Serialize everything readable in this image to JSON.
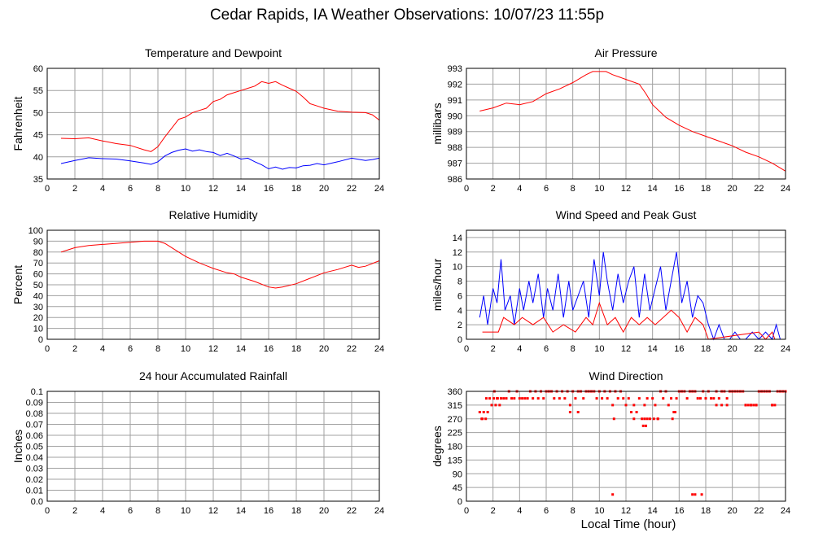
{
  "page": {
    "title": "Cedar Rapids, IA Weather Observations: 10/07/23 11:55p",
    "x_axis_label": "Local Time (hour)"
  },
  "colors": {
    "primary_series": "#ff0000",
    "secondary_series": "#0000ff",
    "grid": "#a0a0a0",
    "frame": "#000000"
  },
  "chart_data": [
    {
      "id": "temp",
      "type": "line",
      "title": "Temperature and Dewpoint",
      "ylabel": "Fahrenheit",
      "xlim": [
        0,
        24
      ],
      "ylim": [
        35,
        60
      ],
      "xticks": [
        0,
        2,
        4,
        6,
        8,
        10,
        12,
        14,
        16,
        18,
        20,
        22,
        24
      ],
      "yticks": [
        35,
        40,
        45,
        50,
        55,
        60
      ],
      "grid": true,
      "series": [
        {
          "color": "#ff0000",
          "x": [
            1,
            2,
            3,
            4,
            5,
            6,
            7,
            7.5,
            8,
            8.5,
            9,
            9.5,
            10,
            10.5,
            11,
            11.5,
            12,
            12.5,
            13,
            13.5,
            14,
            14.5,
            15,
            15.5,
            16,
            16.5,
            17,
            17.5,
            18,
            18.5,
            19,
            19.5,
            20,
            21,
            22,
            23,
            23.5,
            24
          ],
          "y": [
            44.2,
            44.1,
            44.3,
            43.6,
            43,
            42.6,
            41.6,
            41.2,
            42.3,
            44.5,
            46.5,
            48.5,
            49,
            50,
            50.5,
            51,
            52.5,
            53,
            54,
            54.5,
            55,
            55.5,
            56,
            57,
            56.6,
            57,
            56.2,
            55.5,
            54.8,
            53.5,
            52,
            51.5,
            51,
            50.3,
            50.1,
            50,
            49.5,
            48.3
          ]
        },
        {
          "color": "#0000ff",
          "x": [
            1,
            2,
            3,
            4,
            5,
            6,
            7,
            7.5,
            8,
            8.5,
            9,
            9.5,
            10,
            10.5,
            11,
            11.5,
            12,
            12.5,
            13,
            13.5,
            14,
            14.5,
            15,
            15.5,
            16,
            16.5,
            17,
            17.5,
            18,
            18.5,
            19,
            19.5,
            20,
            21,
            22,
            23,
            23.5,
            24
          ],
          "y": [
            38.5,
            39.2,
            39.8,
            39.6,
            39.5,
            39.1,
            38.6,
            38.3,
            38.9,
            40.2,
            41,
            41.5,
            41.8,
            41.3,
            41.6,
            41.2,
            41,
            40.3,
            40.8,
            40.2,
            39.5,
            39.7,
            38.9,
            38.2,
            37.3,
            37.7,
            37.2,
            37.6,
            37.5,
            38,
            38.1,
            38.5,
            38.2,
            38.9,
            39.7,
            39.2,
            39.4,
            39.7
          ]
        }
      ]
    },
    {
      "id": "pressure",
      "type": "line",
      "title": "Air Pressure",
      "ylabel": "millibars",
      "xlim": [
        0,
        24
      ],
      "ylim": [
        986,
        993
      ],
      "xticks": [
        0,
        2,
        4,
        6,
        8,
        10,
        12,
        14,
        16,
        18,
        20,
        22,
        24
      ],
      "yticks": [
        986,
        987,
        988,
        989,
        990,
        991,
        992,
        993
      ],
      "grid": true,
      "series": [
        {
          "color": "#ff0000",
          "x": [
            1,
            2,
            3,
            4,
            5,
            6,
            7,
            8,
            9,
            9.5,
            10,
            10.5,
            11,
            12,
            13,
            13.5,
            14,
            15,
            16,
            17,
            18,
            19,
            20,
            21,
            22,
            23,
            24
          ],
          "y": [
            990.3,
            990.5,
            990.8,
            990.7,
            990.9,
            991.4,
            991.7,
            992.1,
            992.6,
            992.8,
            992.8,
            992.8,
            992.6,
            992.3,
            992,
            991.4,
            990.7,
            989.9,
            989.4,
            989,
            988.7,
            988.4,
            988.1,
            987.7,
            987.4,
            987,
            986.5
          ]
        }
      ]
    },
    {
      "id": "rh",
      "type": "line",
      "title": "Relative Humidity",
      "ylabel": "Percent",
      "xlim": [
        0,
        24
      ],
      "ylim": [
        0,
        100
      ],
      "xticks": [
        0,
        2,
        4,
        6,
        8,
        10,
        12,
        14,
        16,
        18,
        20,
        22,
        24
      ],
      "yticks": [
        0,
        10,
        20,
        30,
        40,
        50,
        60,
        70,
        80,
        90,
        100
      ],
      "grid": true,
      "series": [
        {
          "color": "#ff0000",
          "x": [
            1,
            1.5,
            2,
            3,
            4,
            5,
            6,
            7,
            8,
            8.5,
            9,
            10,
            11,
            12,
            13,
            13.5,
            14,
            15,
            16,
            16.5,
            17,
            18,
            19,
            20,
            21,
            22,
            22.5,
            23,
            24
          ],
          "y": [
            80,
            82,
            84,
            86,
            87,
            88,
            89,
            90,
            90,
            88,
            84,
            76,
            70,
            65,
            61,
            60,
            57,
            53,
            48,
            47,
            48,
            51,
            56,
            61,
            64,
            68,
            66,
            67,
            72
          ]
        }
      ]
    },
    {
      "id": "wind",
      "type": "line",
      "title": "Wind Speed and Peak Gust",
      "ylabel": "miles/hour",
      "xlim": [
        0,
        24
      ],
      "ylim": [
        0,
        15
      ],
      "xticks": [
        0,
        2,
        4,
        6,
        8,
        10,
        12,
        14,
        16,
        18,
        20,
        22,
        24
      ],
      "yticks": [
        0,
        2,
        4,
        6,
        8,
        10,
        12,
        14
      ],
      "grid": true,
      "series": [
        {
          "color": "#0000ff",
          "x": [
            1,
            1.3,
            1.6,
            2,
            2.3,
            2.6,
            2.9,
            3.3,
            3.6,
            4,
            4.3,
            4.7,
            5,
            5.4,
            5.8,
            6.1,
            6.5,
            6.9,
            7.3,
            7.7,
            8,
            8.4,
            8.8,
            9.2,
            9.6,
            10,
            10.3,
            10.6,
            11,
            11.4,
            11.8,
            12.2,
            12.6,
            13,
            13.4,
            13.8,
            14.2,
            14.6,
            15,
            15.4,
            15.8,
            16.2,
            16.6,
            17,
            17.4,
            17.8,
            18.2,
            18.6,
            19,
            19.4,
            19.8,
            20.2,
            20.6,
            21,
            21.5,
            22,
            22.5,
            23,
            23.3,
            23.6
          ],
          "y": [
            3,
            6,
            2,
            7,
            5,
            11,
            4,
            6,
            2,
            7,
            4,
            8,
            5,
            9,
            3,
            7,
            4,
            9,
            3,
            8,
            4,
            6,
            8,
            3,
            11,
            6,
            12,
            8,
            4,
            9,
            5,
            8,
            10,
            3,
            9,
            4,
            7,
            10,
            4,
            8,
            12,
            5,
            8,
            3,
            6,
            5,
            2,
            0,
            2,
            0,
            0,
            1,
            0,
            0,
            1,
            0,
            1,
            0,
            2,
            0
          ]
        },
        {
          "color": "#ff0000",
          "x": [
            1.2,
            2.4,
            2.8,
            3.6,
            4.2,
            5,
            5.8,
            6.5,
            7.3,
            8.2,
            9,
            9.5,
            10,
            10.6,
            11.2,
            11.8,
            12.4,
            13,
            13.6,
            14.2,
            14.8,
            15.4,
            16,
            16.6,
            17.2,
            17.8,
            18.2,
            22,
            22.5,
            23,
            23.2,
            23.5
          ],
          "y": [
            1,
            1,
            3,
            2,
            3,
            2,
            3,
            1,
            2,
            1,
            3,
            2,
            5,
            2,
            3,
            1,
            3,
            2,
            3,
            2,
            3,
            4,
            3,
            1,
            3,
            2,
            0,
            1,
            0,
            1,
            0,
            0
          ]
        }
      ]
    },
    {
      "id": "rain",
      "type": "line",
      "title": "24 hour Accumulated Rainfall",
      "ylabel": "Inches",
      "xlim": [
        0,
        24
      ],
      "ylim": [
        0,
        0.1
      ],
      "xticks": [
        0,
        2,
        4,
        6,
        8,
        10,
        12,
        14,
        16,
        18,
        20,
        22,
        24
      ],
      "yticks": [
        0.0,
        0.01,
        0.02,
        0.03,
        0.04,
        0.05,
        0.06,
        0.07,
        0.08,
        0.09,
        0.1
      ],
      "ytick_labels": [
        "0.0",
        "0.01",
        "0.02",
        "0.03",
        "0.04",
        "0.05",
        "0.06",
        "0.07",
        "0.08",
        "0.09",
        "0.1"
      ],
      "grid": true,
      "series": [
        {
          "color": "#ff0000",
          "x": [
            1,
            24
          ],
          "y": [
            0,
            0
          ]
        }
      ]
    },
    {
      "id": "dir",
      "type": "scatter",
      "title": "Wind Direction",
      "ylabel": "degrees",
      "xlim": [
        0,
        24
      ],
      "ylim": [
        0,
        360
      ],
      "xticks": [
        0,
        2,
        4,
        6,
        8,
        10,
        12,
        14,
        16,
        18,
        20,
        22,
        24
      ],
      "yticks": [
        0,
        45,
        90,
        135,
        180,
        225,
        270,
        315,
        360
      ],
      "grid": true,
      "series": [
        {
          "color": "#ff0000",
          "x": [
            1.0,
            1.15,
            1.3,
            1.45,
            1.6,
            1.2,
            1.5,
            1.75,
            1.9,
            2.05,
            2.2,
            2.35,
            2.5,
            2.1,
            2.3,
            2.6,
            2.8,
            3.0,
            3.2,
            3.4,
            3.6,
            3.8,
            4.0,
            4.2,
            4.4,
            4.6,
            4.8,
            5.0,
            5.2,
            5.4,
            5.6,
            5.8,
            6.0,
            6.2,
            6.4,
            6.6,
            6.8,
            7.0,
            7.2,
            7.4,
            7.6,
            7.8,
            8.0,
            8.2,
            8.4,
            8.6,
            8.8,
            9.0,
            9.2,
            9.4,
            9.6,
            9.8,
            10.0,
            10.2,
            10.4,
            10.6,
            10.8,
            11.0,
            11.2,
            11.4,
            11.6,
            11.8,
            12.0,
            12.2,
            12.4,
            12.6,
            12.8,
            13.0,
            13.2,
            13.4,
            13.6,
            13.8,
            14.0,
            14.2,
            14.4,
            14.6,
            14.8,
            15.0,
            15.2,
            15.4,
            15.6,
            15.8,
            16.0,
            16.2,
            16.4,
            16.6,
            16.8,
            17.0,
            17.2,
            17.4,
            17.6,
            17.8,
            18.0,
            18.2,
            18.4,
            18.6,
            18.8,
            19.0,
            19.2,
            19.4,
            19.6,
            19.8,
            20.0,
            20.2,
            20.4,
            20.6,
            20.8,
            21.0,
            21.2,
            21.4,
            21.6,
            21.8,
            22.0,
            22.2,
            22.4,
            22.6,
            22.8,
            23.0,
            23.2,
            23.4,
            23.6,
            23.8,
            24.0,
            7.8,
            8.4,
            11.1,
            12.6,
            13.3,
            13.5,
            14.1,
            14.4,
            15.5,
            15.7,
            17.0,
            17.2,
            17.7,
            11.0,
            13.4,
            13.6,
            18.8,
            19.2,
            19.6,
            21.0,
            21.4,
            21.8,
            23.0
          ],
          "y": [
            292,
            270,
            292,
            270,
            292,
            270,
            337,
            337,
            315,
            337,
            315,
            337,
            315,
            360,
            337,
            337,
            337,
            337,
            360,
            337,
            337,
            360,
            337,
            337,
            337,
            337,
            360,
            337,
            360,
            337,
            360,
            337,
            360,
            360,
            360,
            337,
            360,
            337,
            360,
            337,
            360,
            315,
            360,
            337,
            360,
            360,
            337,
            360,
            360,
            360,
            360,
            337,
            360,
            337,
            360,
            337,
            360,
            315,
            360,
            337,
            360,
            337,
            315,
            337,
            292,
            315,
            292,
            337,
            270,
            315,
            337,
            270,
            337,
            315,
            270,
            360,
            337,
            360,
            315,
            337,
            292,
            337,
            360,
            360,
            360,
            337,
            360,
            360,
            360,
            337,
            337,
            360,
            337,
            360,
            337,
            337,
            360,
            337,
            360,
            360,
            337,
            360,
            360,
            360,
            360,
            360,
            360,
            315,
            315,
            315,
            315,
            315,
            360,
            360,
            360,
            360,
            360,
            315,
            315,
            360,
            360,
            360,
            360,
            292,
            292,
            270,
            270,
            247,
            247,
            270,
            270,
            270,
            292,
            22,
            22,
            22,
            22,
            270,
            270,
            315,
            315,
            315,
            315,
            315,
            315,
            315
          ]
        }
      ]
    }
  ]
}
